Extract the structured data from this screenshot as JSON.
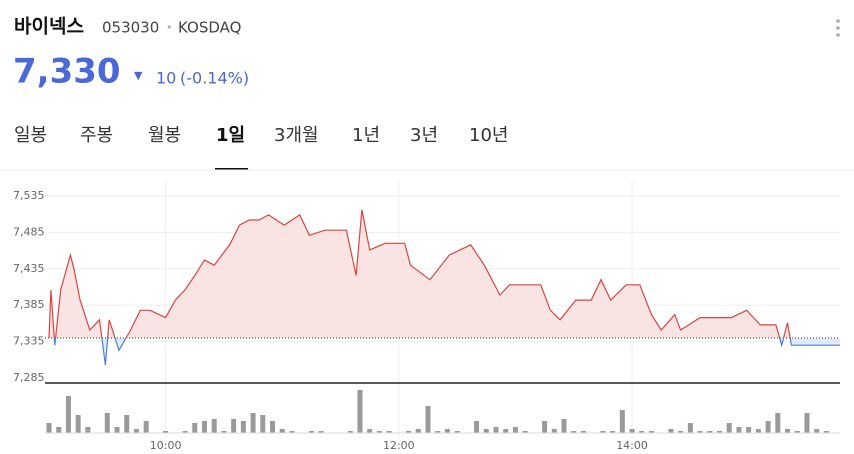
{
  "header": {
    "name": "바이넥스",
    "code": "053030",
    "separator": "•",
    "market": "KOSDAQ",
    "price": "7,330",
    "change_arrow": "▼",
    "change": "10",
    "change_pct": "(-0.14%)"
  },
  "tabs": {
    "items": [
      "일봉",
      "주봉",
      "월봉",
      "1일",
      "3개월",
      "1년",
      "3년",
      "10년"
    ],
    "active": 3
  },
  "chart_data": {
    "type": "line",
    "x": [
      "09:00",
      "09:01",
      "09:03",
      "09:06",
      "09:11",
      "09:13",
      "09:16",
      "09:21",
      "09:26",
      "09:29",
      "09:31",
      "09:36",
      "09:42",
      "09:47",
      "09:52",
      "10:00",
      "10:05",
      "10:10",
      "10:15",
      "10:20",
      "10:25",
      "10:33",
      "10:38",
      "10:43",
      "10:48",
      "10:53",
      "11:01",
      "11:09",
      "11:14",
      "11:22",
      "11:33",
      "11:38",
      "11:41",
      "11:45",
      "11:53",
      "12:03",
      "12:06",
      "12:16",
      "12:26",
      "12:37",
      "12:44",
      "12:52",
      "12:57",
      "13:13",
      "13:18",
      "13:23",
      "13:31",
      "13:39",
      "13:44",
      "13:49",
      "13:57",
      "14:04",
      "14:10",
      "14:15",
      "14:22",
      "14:25",
      "14:35",
      "14:51",
      "14:59",
      "15:06",
      "15:14",
      "15:17",
      "15:20",
      "15:22",
      "15:47"
    ],
    "values": [
      7340,
      7406,
      7330,
      7406,
      7454,
      7433,
      7392,
      7351,
      7365,
      7303,
      7365,
      7323,
      7351,
      7378,
      7378,
      7368,
      7392,
      7406,
      7426,
      7447,
      7440,
      7468,
      7495,
      7502,
      7502,
      7509,
      7495,
      7509,
      7481,
      7488,
      7488,
      7426,
      7516,
      7461,
      7470,
      7470,
      7440,
      7420,
      7454,
      7468,
      7440,
      7399,
      7413,
      7413,
      7378,
      7365,
      7392,
      7392,
      7420,
      7392,
      7413,
      7413,
      7372,
      7351,
      7372,
      7351,
      7368,
      7368,
      7378,
      7358,
      7358,
      7330,
      7361,
      7330,
      7330
    ],
    "reference_line": 7340,
    "color": "#d9453f",
    "below_color": "#4a7fd6",
    "fill": "#f8dcdc",
    "below_fill": "#dce6f6",
    "xlim": [
      "09:00",
      "15:47"
    ],
    "xticks": [
      "10:00",
      "12:00",
      "14:00"
    ],
    "ylim": [
      7285,
      7535
    ],
    "yticks": [
      {
        "value": 7285,
        "label": "7,285"
      },
      {
        "value": 7335,
        "label": "7,335"
      },
      {
        "value": 7385,
        "label": "7,385"
      },
      {
        "value": 7435,
        "label": "7,435"
      },
      {
        "value": 7485,
        "label": "7,485"
      },
      {
        "value": 7535,
        "label": "7,535"
      }
    ],
    "grid": true,
    "volume": {
      "color": "#9a9a9a",
      "x": [
        "09:00",
        "09:05",
        "09:10",
        "09:15",
        "09:20",
        "09:30",
        "09:35",
        "09:40",
        "09:45",
        "09:50",
        "10:00",
        "10:10",
        "10:15",
        "10:20",
        "10:25",
        "10:30",
        "10:35",
        "10:40",
        "10:45",
        "10:50",
        "10:55",
        "11:00",
        "11:05",
        "11:15",
        "11:20",
        "11:35",
        "11:40",
        "11:45",
        "11:50",
        "11:55",
        "12:05",
        "12:10",
        "12:15",
        "12:20",
        "12:25",
        "12:30",
        "12:40",
        "12:45",
        "12:50",
        "12:55",
        "13:00",
        "13:05",
        "13:15",
        "13:20",
        "13:25",
        "13:30",
        "13:35",
        "13:45",
        "13:50",
        "13:55",
        "14:00",
        "14:05",
        "14:10",
        "14:20",
        "14:25",
        "14:30",
        "14:35",
        "14:40",
        "14:45",
        "14:50",
        "14:55",
        "15:00",
        "15:05",
        "15:10",
        "15:15",
        "15:20",
        "15:25",
        "15:30",
        "15:35",
        "15:40"
      ],
      "values": [
        10,
        6,
        37,
        18,
        6,
        20,
        6,
        18,
        4,
        12,
        2,
        2,
        10,
        12,
        14,
        2,
        14,
        12,
        20,
        18,
        12,
        4,
        2,
        2,
        2,
        2,
        43,
        4,
        2,
        2,
        2,
        4,
        27,
        2,
        4,
        2,
        12,
        4,
        6,
        4,
        6,
        2,
        12,
        4,
        14,
        2,
        2,
        2,
        2,
        23,
        4,
        2,
        2,
        4,
        2,
        10,
        2,
        2,
        2,
        10,
        6,
        6,
        4,
        12,
        20,
        4,
        2,
        20,
        4,
        2
      ]
    }
  }
}
